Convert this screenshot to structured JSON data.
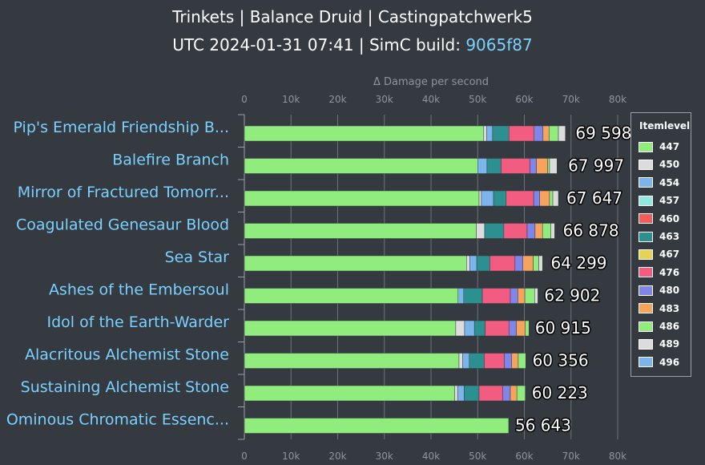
{
  "title": "Trinkets | Balance Druid | Castingpatchwerk5",
  "subtitle_prefix": "UTC 2024-01-31 07:41 | SimC build: ",
  "subtitle_build": "9065f87",
  "colors": {
    "background": "#343a40",
    "label": "#7ad0ff",
    "axis_text": "#8e959c",
    "grid": "#6c737a"
  },
  "chart_data": {
    "type": "bar",
    "orientation": "horizontal",
    "stacked": true,
    "xlabel": "Δ Damage per second",
    "xlim": [
      0,
      80000
    ],
    "ticks": [
      0,
      10000,
      20000,
      30000,
      40000,
      50000,
      60000,
      70000,
      80000
    ],
    "tick_labels": [
      "0",
      "10k",
      "20k",
      "30k",
      "40k",
      "50k",
      "60k",
      "70k",
      "80k"
    ],
    "grid": true,
    "legend_position": "right",
    "legend_title": "Itemlevel",
    "legend": [
      {
        "label": "447",
        "color": "#90ed7d"
      },
      {
        "label": "450",
        "color": "#dcdcdc"
      },
      {
        "label": "454",
        "color": "#7cb5ec"
      },
      {
        "label": "457",
        "color": "#91e8e1"
      },
      {
        "label": "460",
        "color": "#f45b5b"
      },
      {
        "label": "463",
        "color": "#2b908f"
      },
      {
        "label": "467",
        "color": "#e4d354"
      },
      {
        "label": "476",
        "color": "#f15c80"
      },
      {
        "label": "480",
        "color": "#8085e9"
      },
      {
        "label": "483",
        "color": "#f7a35c"
      },
      {
        "label": "486",
        "color": "#90ed7d"
      },
      {
        "label": "489",
        "color": "#dcdcdc"
      },
      {
        "label": "496",
        "color": "#7cb5ec"
      }
    ],
    "items": [
      {
        "name": "Pip's Emerald Friendship B...",
        "total": 69598,
        "total_label": "69 598",
        "segments": [
          [
            51300,
            "#90ed7d"
          ],
          [
            600,
            "#dcdcdc"
          ],
          [
            1300,
            "#7cb5ec"
          ],
          [
            3500,
            "#2b908f"
          ],
          [
            5400,
            "#f15c80"
          ],
          [
            1900,
            "#8085e9"
          ],
          [
            1300,
            "#f7a35c"
          ],
          [
            2000,
            "#90ed7d"
          ],
          [
            1500,
            "#dcdcdc"
          ]
        ]
      },
      {
        "name": "Balefire Branch",
        "total": 67997,
        "total_label": "67 997",
        "segments": [
          [
            50000,
            "#90ed7d"
          ],
          [
            2000,
            "#7cb5ec"
          ],
          [
            3000,
            "#2b908f"
          ],
          [
            6200,
            "#f15c80"
          ],
          [
            1400,
            "#8085e9"
          ],
          [
            2400,
            "#f7a35c"
          ],
          [
            400,
            "#90ed7d"
          ],
          [
            1600,
            "#dcdcdc"
          ]
        ]
      },
      {
        "name": "Mirror of Fractured Tomorr...",
        "total": 67647,
        "total_label": "67 647",
        "segments": [
          [
            50300,
            "#90ed7d"
          ],
          [
            500,
            "#dcdcdc"
          ],
          [
            2600,
            "#7cb5ec"
          ],
          [
            2700,
            "#2b908f"
          ],
          [
            5900,
            "#f15c80"
          ],
          [
            1300,
            "#8085e9"
          ],
          [
            2100,
            "#f7a35c"
          ],
          [
            700,
            "#90ed7d"
          ],
          [
            1200,
            "#dcdcdc"
          ]
        ]
      },
      {
        "name": "Coagulated Genesaur Blood",
        "total": 66878,
        "total_label": "66 878",
        "segments": [
          [
            49700,
            "#90ed7d"
          ],
          [
            1800,
            "#dcdcdc"
          ],
          [
            4100,
            "#2b908f"
          ],
          [
            5000,
            "#f15c80"
          ],
          [
            1700,
            "#8085e9"
          ],
          [
            1600,
            "#f7a35c"
          ],
          [
            1800,
            "#90ed7d"
          ],
          [
            800,
            "#dcdcdc"
          ]
        ]
      },
      {
        "name": "Sea Star",
        "total": 64299,
        "total_label": "64 299",
        "segments": [
          [
            47600,
            "#90ed7d"
          ],
          [
            700,
            "#dcdcdc"
          ],
          [
            1500,
            "#7cb5ec"
          ],
          [
            2800,
            "#2b908f"
          ],
          [
            5400,
            "#f15c80"
          ],
          [
            1700,
            "#8085e9"
          ],
          [
            2200,
            "#f7a35c"
          ],
          [
            1200,
            "#90ed7d"
          ],
          [
            800,
            "#dcdcdc"
          ]
        ]
      },
      {
        "name": "Ashes of the Embersoul",
        "total": 62902,
        "total_label": "62 902",
        "segments": [
          [
            45800,
            "#90ed7d"
          ],
          [
            1200,
            "#7cb5ec"
          ],
          [
            4000,
            "#2b908f"
          ],
          [
            6000,
            "#f15c80"
          ],
          [
            1600,
            "#8085e9"
          ],
          [
            1500,
            "#f7a35c"
          ],
          [
            2100,
            "#90ed7d"
          ],
          [
            700,
            "#dcdcdc"
          ]
        ]
      },
      {
        "name": "Idol of the Earth-Warder",
        "total": 60915,
        "total_label": "60 915",
        "segments": [
          [
            45300,
            "#90ed7d"
          ],
          [
            1900,
            "#dcdcdc"
          ],
          [
            2100,
            "#7cb5ec"
          ],
          [
            2300,
            "#2b908f"
          ],
          [
            5100,
            "#f15c80"
          ],
          [
            1600,
            "#8085e9"
          ],
          [
            1900,
            "#f7a35c"
          ],
          [
            800,
            "#90ed7d"
          ]
        ]
      },
      {
        "name": "Alacritous Alchemist Stone",
        "total": 60356,
        "total_label": "60 356",
        "segments": [
          [
            46000,
            "#90ed7d"
          ],
          [
            800,
            "#dcdcdc"
          ],
          [
            1400,
            "#7cb5ec"
          ],
          [
            3200,
            "#2b908f"
          ],
          [
            4300,
            "#f15c80"
          ],
          [
            1600,
            "#8085e9"
          ],
          [
            1400,
            "#f7a35c"
          ],
          [
            1600,
            "#90ed7d"
          ]
        ]
      },
      {
        "name": "Sustaining Alchemist Stone",
        "total": 60223,
        "total_label": "60 223",
        "segments": [
          [
            45100,
            "#90ed7d"
          ],
          [
            600,
            "#dcdcdc"
          ],
          [
            1400,
            "#7cb5ec"
          ],
          [
            3200,
            "#2b908f"
          ],
          [
            5100,
            "#f15c80"
          ],
          [
            1600,
            "#8085e9"
          ],
          [
            1400,
            "#f7a35c"
          ],
          [
            1800,
            "#90ed7d"
          ]
        ]
      },
      {
        "name": "Ominous Chromatic Essenc...",
        "total": 56643,
        "total_label": "56 643",
        "segments": [
          [
            56643,
            "#90ed7d"
          ]
        ]
      }
    ]
  }
}
